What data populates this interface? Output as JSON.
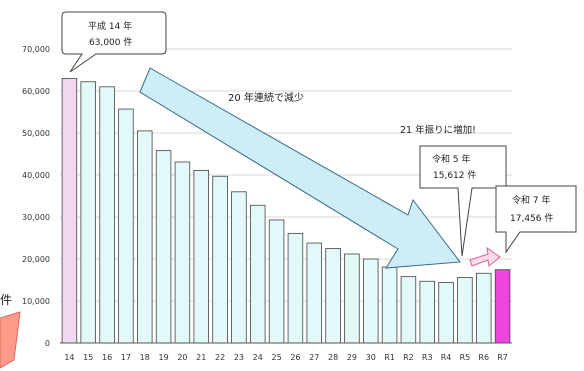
{
  "chart_data": {
    "type": "bar",
    "categories": [
      "14",
      "15",
      "16",
      "17",
      "18",
      "19",
      "20",
      "21",
      "22",
      "23",
      "24",
      "25",
      "26",
      "27",
      "28",
      "29",
      "30",
      "R1",
      "R2",
      "R3",
      "R4",
      "R5",
      "R6",
      "R7"
    ],
    "values": [
      63000,
      62200,
      61000,
      55700,
      50500,
      45800,
      43100,
      41100,
      39700,
      36000,
      32800,
      29300,
      26100,
      23800,
      22500,
      21200,
      20000,
      18100,
      15800,
      14700,
      14400,
      15612,
      16600,
      17456
    ],
    "highlight_indices": [
      0,
      23
    ],
    "ylim": [
      0,
      70000
    ],
    "yticks": [
      0,
      10000,
      20000,
      30000,
      40000,
      50000,
      60000,
      70000
    ],
    "ytick_labels": [
      "0",
      "10,000",
      "20,000",
      "30,000",
      "40,000",
      "50,000",
      "60,000",
      "70,000"
    ],
    "grid": true,
    "colors": {
      "bar": "#e3f8f8",
      "bar_border": "#444444",
      "highlight_first": "#f0d8f0",
      "highlight_last": "#ee44dd",
      "arrow_blue": "#cdeef7",
      "arrow_blue_border": "#3a6a8a",
      "arrow_pink": "#fbdce8",
      "arrow_pink_border": "#e0609a",
      "left_shape": "#ff9a8a"
    },
    "annotations": {
      "peak": {
        "line1": "平成 14 年",
        "line2": "63,000 件"
      },
      "decrease": "20 年連続で減少",
      "increase_headline": "21 年振りに増加!",
      "r5": {
        "line1": "令和 5 年",
        "line2": "15,612 件"
      },
      "r7": {
        "line1": "令和 7 年",
        "line2": "17,456 件"
      },
      "left_fragment": "件"
    }
  }
}
